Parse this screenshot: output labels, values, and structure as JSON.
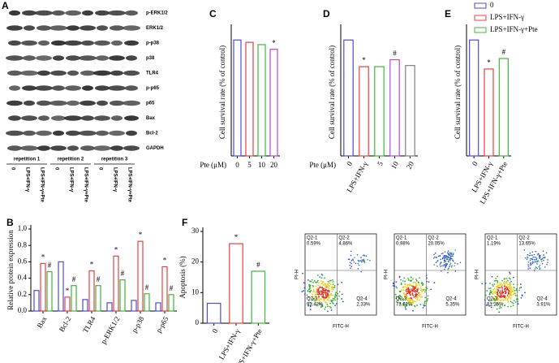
{
  "panels_text": {
    "a": "A"
  },
  "blot": {
    "proteins": [
      "p-ERK1/2",
      "ERK1/2",
      "p-p38",
      "p38",
      "TLR4",
      "p-p65",
      "p65",
      "Bax",
      "Bcl-2",
      "GAPDH"
    ],
    "repetitions": [
      "repetition 1",
      "repetition 2",
      "repetition 3"
    ],
    "lanes": [
      "0",
      "LPS+IFN-γ",
      "LPS+IFN-γ+Pte"
    ]
  },
  "legend": [
    {
      "name": "0",
      "color": "#4a4ae6"
    },
    {
      "name": "LPS+IFN-γ",
      "color": "#e84040"
    },
    {
      "name": "LPS+IFN-γ+Pte",
      "color": "#3cb83c"
    }
  ],
  "chart_data": [
    {
      "type": "bar",
      "label": "B",
      "y_label": "Relative protein expression",
      "categories": [
        "Bax",
        "Bcl-2",
        "TLR4",
        "p-ERK1/2",
        "p-p38",
        "p-p65"
      ],
      "series": [
        {
          "name": "0",
          "color": "#4a4ae6",
          "values": [
            0.25,
            0.6,
            0.14,
            0.1,
            0.13,
            0.1
          ],
          "markers": [
            null,
            null,
            null,
            null,
            null,
            null
          ]
        },
        {
          "name": "LPS+IFN-γ",
          "color": "#e84040",
          "values": [
            0.58,
            0.17,
            0.49,
            0.67,
            0.85,
            0.54
          ],
          "markers": [
            "*",
            "*",
            "*",
            "*",
            "*",
            "*"
          ]
        },
        {
          "name": "LPS+IFN-γ+Pte",
          "color": "#3cb83c",
          "values": [
            0.48,
            0.31,
            0.31,
            0.38,
            0.21,
            0.2
          ],
          "markers": [
            "#",
            "#",
            "#",
            "#",
            "#",
            "#"
          ]
        }
      ],
      "ylim": [
        0,
        1.0
      ],
      "yticks": [
        {
          "value": 0,
          "label": "0.0"
        },
        0.2,
        0.4,
        0.6,
        0.8,
        {
          "value": 1.0,
          "label": "1.0"
        }
      ]
    },
    {
      "type": "bar",
      "label": "C",
      "y_label": "Cell survival rate (% of control)",
      "x_label": "Pte (μM)",
      "categories": [
        "0",
        "5",
        "10",
        "20"
      ],
      "values": [
        100,
        98,
        96,
        92
      ],
      "colors": [
        "#4a4ae6",
        "#e84040",
        "#3cb83c",
        "#b44ae0"
      ],
      "markers": [
        null,
        null,
        null,
        "*"
      ],
      "ylim": [
        0,
        110
      ]
    },
    {
      "type": "bar",
      "label": "D",
      "y_label": "Cell survival rate (% of control)",
      "x_label": "Pte (μM)",
      "categories": [
        "0",
        "LPS+IFN-γ",
        "5",
        "10",
        "20"
      ],
      "values": [
        100,
        77,
        77,
        83,
        78
      ],
      "colors": [
        "#4a4ae6",
        "#e84040",
        "#3cb83c",
        "#b44ae0",
        "#808080"
      ],
      "markers": [
        null,
        "*",
        null,
        "#",
        null
      ],
      "ylim": [
        0,
        110
      ]
    },
    {
      "type": "bar",
      "label": "E",
      "y_label": "Cell survival rate (% of control)",
      "categories": [
        "0",
        "LPS+IFN-γ",
        "LPS+IFN-γ+Pte"
      ],
      "values": [
        100,
        75,
        84
      ],
      "colors": [
        "#4a4ae6",
        "#e84040",
        "#3cb83c"
      ],
      "markers": [
        null,
        "*",
        "#"
      ],
      "ylim": [
        0,
        110
      ]
    },
    {
      "type": "bar",
      "label": "F",
      "y_label": "Apoptosis (%)",
      "categories": [
        "0",
        "LPS+IFN-γ",
        "LPS+IFN-γ+Pte"
      ],
      "values": [
        6.5,
        26,
        17
      ],
      "colors": [
        "#4a4ae6",
        "#e84040",
        "#3cb83c"
      ],
      "markers": [
        null,
        "*",
        "#"
      ],
      "ylim": [
        0,
        30
      ],
      "yticks": [
        0,
        10,
        20,
        30
      ]
    }
  ],
  "flow": {
    "x_label": "FITC-H",
    "y_label": "PI-H",
    "quadrants": [
      "Q2-1",
      "Q2-2",
      "Q2-3",
      "Q2-4"
    ],
    "plots": [
      [
        "0.59%",
        "4.86%",
        "92.42%",
        "2.33%"
      ],
      [
        "0.98%",
        "20.05%",
        "73.62%",
        "5.35%"
      ],
      [
        "1.19%",
        "13.65%",
        "81.25%",
        "3.91%"
      ]
    ]
  }
}
